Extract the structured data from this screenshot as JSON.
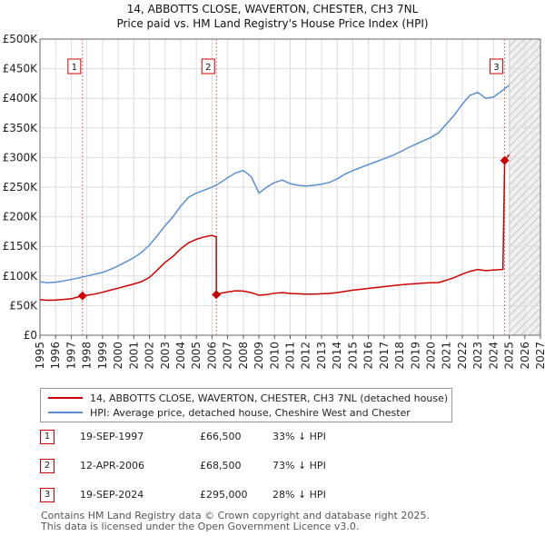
{
  "chart_data": {
    "type": "line",
    "title": "14, ABBOTTS CLOSE, WAVERTON, CHESTER, CH3 7NL",
    "subtitle": "Price paid vs. HM Land Registry's House Price Index (HPI)",
    "ylim": [
      0,
      500000
    ],
    "xlim": [
      1995,
      2027
    ],
    "y_ticks": [
      0,
      50000,
      100000,
      150000,
      200000,
      250000,
      300000,
      350000,
      400000,
      450000,
      500000
    ],
    "y_tick_labels": [
      "£0",
      "£50K",
      "£100K",
      "£150K",
      "£200K",
      "£250K",
      "£300K",
      "£350K",
      "£400K",
      "£450K",
      "£500K"
    ],
    "x_ticks": [
      "1995",
      "1996",
      "1997",
      "1998",
      "1999",
      "2000",
      "2001",
      "2002",
      "2003",
      "2004",
      "2005",
      "2006",
      "2007",
      "2008",
      "2009",
      "2010",
      "2011",
      "2012",
      "2013",
      "2014",
      "2015",
      "2016",
      "2017",
      "2018",
      "2019",
      "2020",
      "2021",
      "2022",
      "2023",
      "2024",
      "2025",
      "2026",
      "2027"
    ],
    "forecast_start": 2025.0,
    "series": [
      {
        "name": "14, ABBOTTS CLOSE, WAVERTON, CHESTER, CH3 7NL (detached house)",
        "color": "#cc0000",
        "points": [
          [
            1995.0,
            60000
          ],
          [
            1995.5,
            59000
          ],
          [
            1996.0,
            59500
          ],
          [
            1996.5,
            60500
          ],
          [
            1997.0,
            61500
          ],
          [
            1997.72,
            66500
          ],
          [
            1998.0,
            67500
          ],
          [
            1998.5,
            69500
          ],
          [
            1999.0,
            72500
          ],
          [
            1999.5,
            76000
          ],
          [
            2000.0,
            79500
          ],
          [
            2000.5,
            83000
          ],
          [
            2001.0,
            86500
          ],
          [
            2001.5,
            90500
          ],
          [
            2002.0,
            97500
          ],
          [
            2002.5,
            110000
          ],
          [
            2003.0,
            123000
          ],
          [
            2003.5,
            133000
          ],
          [
            2004.0,
            146000
          ],
          [
            2004.5,
            156000
          ],
          [
            2005.0,
            162000
          ],
          [
            2005.5,
            166000
          ],
          [
            2006.0,
            168500
          ],
          [
            2006.27,
            166000
          ],
          [
            2006.28,
            68500
          ],
          [
            2006.5,
            70500
          ],
          [
            2007.0,
            73000
          ],
          [
            2007.5,
            75000
          ],
          [
            2008.0,
            74500
          ],
          [
            2008.5,
            72000
          ],
          [
            2009.0,
            67500
          ],
          [
            2009.5,
            68500
          ],
          [
            2010.0,
            71000
          ],
          [
            2010.5,
            72000
          ],
          [
            2011.0,
            70500
          ],
          [
            2011.5,
            70000
          ],
          [
            2012.0,
            69500
          ],
          [
            2012.5,
            69500
          ],
          [
            2013.0,
            70000
          ],
          [
            2013.5,
            70500
          ],
          [
            2014.0,
            72000
          ],
          [
            2014.5,
            74000
          ],
          [
            2015.0,
            76000
          ],
          [
            2015.5,
            77500
          ],
          [
            2016.0,
            79000
          ],
          [
            2016.5,
            80500
          ],
          [
            2017.0,
            82000
          ],
          [
            2017.5,
            83500
          ],
          [
            2018.0,
            85000
          ],
          [
            2018.5,
            86000
          ],
          [
            2019.0,
            87000
          ],
          [
            2019.5,
            88000
          ],
          [
            2020.0,
            88500
          ],
          [
            2020.5,
            89000
          ],
          [
            2021.0,
            93000
          ],
          [
            2021.5,
            97500
          ],
          [
            2022.0,
            103000
          ],
          [
            2022.5,
            108000
          ],
          [
            2023.0,
            111000
          ],
          [
            2023.5,
            109000
          ],
          [
            2024.0,
            110000
          ],
          [
            2024.6,
            111000
          ],
          [
            2024.71,
            295000
          ],
          [
            2025.0,
            305000
          ]
        ]
      },
      {
        "name": "HPI: Average price, detached house, Cheshire West and Chester",
        "color": "#5b8fd4",
        "points": [
          [
            1995.0,
            90000
          ],
          [
            1995.5,
            88500
          ],
          [
            1996.0,
            89500
          ],
          [
            1996.5,
            91500
          ],
          [
            1997.0,
            94000
          ],
          [
            1997.5,
            97000
          ],
          [
            1998.0,
            100000
          ],
          [
            1998.5,
            103000
          ],
          [
            1999.0,
            106000
          ],
          [
            1999.5,
            111000
          ],
          [
            2000.0,
            117000
          ],
          [
            2000.5,
            124000
          ],
          [
            2001.0,
            131000
          ],
          [
            2001.5,
            140000
          ],
          [
            2002.0,
            152000
          ],
          [
            2002.5,
            168000
          ],
          [
            2003.0,
            185000
          ],
          [
            2003.5,
            200000
          ],
          [
            2004.0,
            218000
          ],
          [
            2004.5,
            233000
          ],
          [
            2005.0,
            240000
          ],
          [
            2005.5,
            245000
          ],
          [
            2006.0,
            250000
          ],
          [
            2006.5,
            257000
          ],
          [
            2007.0,
            266000
          ],
          [
            2007.5,
            274000
          ],
          [
            2008.0,
            278000
          ],
          [
            2008.5,
            268000
          ],
          [
            2009.0,
            240000
          ],
          [
            2009.5,
            250000
          ],
          [
            2010.0,
            258000
          ],
          [
            2010.5,
            262000
          ],
          [
            2011.0,
            256000
          ],
          [
            2011.5,
            253000
          ],
          [
            2012.0,
            252000
          ],
          [
            2012.5,
            253000
          ],
          [
            2013.0,
            255000
          ],
          [
            2013.5,
            258000
          ],
          [
            2014.0,
            264000
          ],
          [
            2014.5,
            272000
          ],
          [
            2015.0,
            278000
          ],
          [
            2015.5,
            283000
          ],
          [
            2016.0,
            288000
          ],
          [
            2016.5,
            293000
          ],
          [
            2017.0,
            298000
          ],
          [
            2017.5,
            303000
          ],
          [
            2018.0,
            309000
          ],
          [
            2018.5,
            316000
          ],
          [
            2019.0,
            322000
          ],
          [
            2019.5,
            328000
          ],
          [
            2020.0,
            334000
          ],
          [
            2020.5,
            342000
          ],
          [
            2021.0,
            357000
          ],
          [
            2021.5,
            372000
          ],
          [
            2022.0,
            390000
          ],
          [
            2022.5,
            405000
          ],
          [
            2023.0,
            410000
          ],
          [
            2023.5,
            400000
          ],
          [
            2024.0,
            402000
          ],
          [
            2024.5,
            412000
          ],
          [
            2025.0,
            422000
          ]
        ]
      }
    ],
    "markers": [
      {
        "label": "1",
        "x": 1997.72,
        "y": 66500
      },
      {
        "label": "2",
        "x": 2006.28,
        "y": 68500
      },
      {
        "label": "3",
        "x": 2024.71,
        "y": 295000
      }
    ]
  },
  "legend": {
    "property": "14, ABBOTTS CLOSE, WAVERTON, CHESTER, CH3 7NL (detached house)",
    "hpi": "HPI: Average price, detached house, Cheshire West and Chester"
  },
  "sales": [
    {
      "num": "1",
      "date": "19-SEP-1997",
      "price": "£66,500",
      "hpi": "33% ↓ HPI"
    },
    {
      "num": "2",
      "date": "12-APR-2006",
      "price": "£68,500",
      "hpi": "73% ↓ HPI"
    },
    {
      "num": "3",
      "date": "19-SEP-2024",
      "price": "£295,000",
      "hpi": "28% ↓ HPI"
    }
  ],
  "footer": {
    "line1": "Contains HM Land Registry data © Crown copyright and database right 2025.",
    "line2": "This data is licensed under the Open Government Licence v3.0."
  },
  "colors": {
    "property": "#cc0000",
    "hpi": "#5b8fd4",
    "grid": "#dddddd"
  }
}
